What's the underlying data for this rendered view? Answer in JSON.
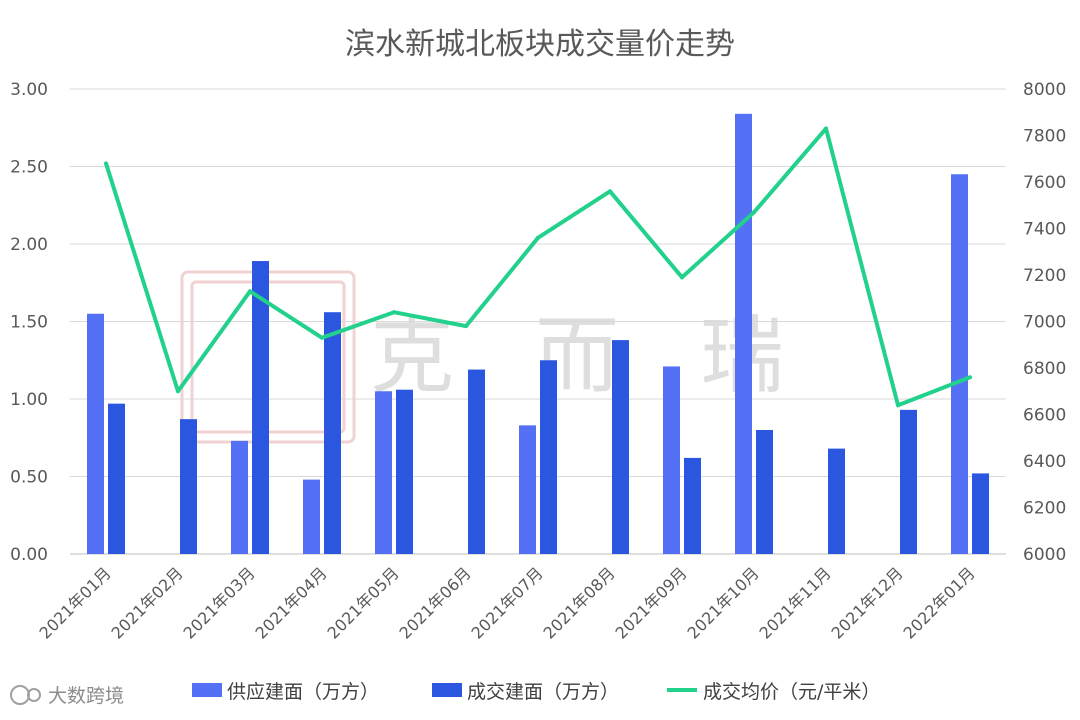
{
  "chart_data": {
    "type": "bar",
    "title": "滨水新城北板块成交量价走势",
    "categories": [
      "2021年01月",
      "2021年02月",
      "2021年03月",
      "2021年04月",
      "2021年05月",
      "2021年06月",
      "2021年07月",
      "2021年08月",
      "2021年09月",
      "2021年10月",
      "2021年11月",
      "2021年12月",
      "2022年01月"
    ],
    "series": [
      {
        "name": "供应建面（万方）",
        "kind": "bar",
        "axis": "left",
        "color": "#5470f5",
        "values": [
          1.55,
          null,
          0.73,
          0.48,
          1.05,
          null,
          0.83,
          null,
          1.21,
          2.84,
          null,
          null,
          2.45
        ]
      },
      {
        "name": "成交建面（万方）",
        "kind": "bar",
        "axis": "left",
        "color": "#2b57e0",
        "values": [
          0.97,
          0.87,
          1.89,
          1.56,
          1.06,
          1.19,
          1.25,
          1.38,
          0.62,
          0.8,
          0.68,
          0.93,
          0.52
        ]
      },
      {
        "name": "成交均价（元/平米）",
        "kind": "line",
        "axis": "right",
        "color": "#22d18b",
        "values": [
          7680,
          6700,
          7130,
          6930,
          7040,
          6980,
          7360,
          7560,
          7190,
          7470,
          7830,
          6640,
          6760
        ]
      }
    ],
    "y_left": {
      "min": 0,
      "max": 3,
      "ticks": [
        "0.00",
        "0.50",
        "1.00",
        "1.50",
        "2.00",
        "2.50",
        "3.00"
      ]
    },
    "y_right": {
      "min": 6000,
      "max": 8000,
      "ticks": [
        "6000",
        "6200",
        "6400",
        "6600",
        "6800",
        "7000",
        "7200",
        "7400",
        "7600",
        "7800",
        "8000"
      ]
    },
    "grid": true,
    "legend_position": "bottom"
  },
  "watermark": {
    "text": [
      "克",
      "而",
      "瑞"
    ]
  },
  "credit": {
    "text": "大数跨境"
  }
}
